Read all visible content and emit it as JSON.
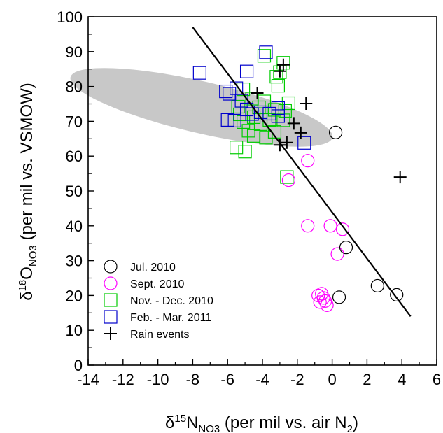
{
  "chart_data": {
    "type": "scatter",
    "xlim": [
      -14,
      6
    ],
    "ylim": [
      0,
      100
    ],
    "x_ticks": [
      -14,
      -12,
      -10,
      -8,
      -6,
      -4,
      -2,
      0,
      2,
      4,
      6
    ],
    "y_ticks": [
      0,
      10,
      20,
      30,
      40,
      50,
      60,
      70,
      80,
      90,
      100
    ],
    "x_tick_labels": [
      "-14",
      "-12",
      "-10",
      "-8",
      "-6",
      "-4",
      "-2",
      "0",
      "2",
      "4",
      "6"
    ],
    "y_tick_labels": [
      "0",
      "10",
      "20",
      "30",
      "40",
      "50",
      "60",
      "70",
      "80",
      "90",
      "100"
    ],
    "xlabel": {
      "prefix": "δ",
      "sup": "15",
      "main": "N",
      "sub": "NO3",
      "suffix": " (per mil vs. air N",
      "suffix_sub": "2",
      "end": ")"
    },
    "ylabel": {
      "prefix": "δ",
      "sup": "18",
      "main": "O",
      "sub": "NO3",
      "suffix": " (per mil vs. VSMOW)"
    },
    "grid": false,
    "legend_position": "bottom-left",
    "ellipse": {
      "center": [
        -7.5,
        74
      ],
      "x_radius": 7.6,
      "y_radius": 8.4,
      "fill": "#c8c8c8"
    },
    "regression_line": {
      "start": [
        -8,
        97
      ],
      "end": [
        4.5,
        14
      ],
      "color": "#000000"
    },
    "series": [
      {
        "name": "Jul. 2010",
        "marker": "circle",
        "color": "#000000",
        "points": [
          [
            0.2,
            66.8
          ],
          [
            0.8,
            33.8
          ],
          [
            2.6,
            22.8
          ],
          [
            3.7,
            20.2
          ],
          [
            0.4,
            19.5
          ]
        ]
      },
      {
        "name": "Sept. 2010",
        "marker": "circle",
        "color": "#ff00ff",
        "points": [
          [
            -1.4,
            58.7
          ],
          [
            -2.5,
            53.1
          ],
          [
            -1.4,
            40.0
          ],
          [
            -0.1,
            40.0
          ],
          [
            0.6,
            39.0
          ],
          [
            0.3,
            31.9
          ],
          [
            -0.6,
            20.5
          ],
          [
            -0.8,
            20.0
          ],
          [
            -0.5,
            19.3
          ],
          [
            -0.4,
            18.4
          ],
          [
            -0.7,
            18.1
          ],
          [
            -0.3,
            17.2
          ]
        ]
      },
      {
        "name": "Nov. - Dec. 2010",
        "marker": "square",
        "color": "#00cc00",
        "points": [
          [
            -3.9,
            88.8
          ],
          [
            -2.8,
            86.8
          ],
          [
            -3.0,
            84.1
          ],
          [
            -3.2,
            82.8
          ],
          [
            -3.1,
            80.2
          ],
          [
            -5.1,
            79.2
          ],
          [
            -4.6,
            76.5
          ],
          [
            -3.9,
            75.7
          ],
          [
            -2.5,
            75.2
          ],
          [
            -5.4,
            74.2
          ],
          [
            -4.2,
            74.0
          ],
          [
            -3.3,
            73.3
          ],
          [
            -2.7,
            73.0
          ],
          [
            -5.3,
            72.0
          ],
          [
            -4.5,
            71.2
          ],
          [
            -3.6,
            70.4
          ],
          [
            -2.8,
            70.3
          ],
          [
            -5.1,
            69.8
          ],
          [
            -4.1,
            69.2
          ],
          [
            -4.8,
            67.3
          ],
          [
            -3.3,
            67.0
          ],
          [
            -4.5,
            65.8
          ],
          [
            -3.8,
            65.3
          ],
          [
            -5.5,
            62.5
          ],
          [
            -5.0,
            61.3
          ],
          [
            -2.6,
            54.0
          ]
        ]
      },
      {
        "name": "Feb. - Mar. 2011",
        "marker": "square",
        "color": "#0000cc",
        "points": [
          [
            -3.8,
            89.8
          ],
          [
            -7.6,
            83.9
          ],
          [
            -4.9,
            84.3
          ],
          [
            -6.1,
            78.6
          ],
          [
            -5.5,
            79.5
          ],
          [
            -5.9,
            77.9
          ],
          [
            -5.2,
            75.9
          ],
          [
            -4.9,
            73.4
          ],
          [
            -4.6,
            72.1
          ],
          [
            -4.1,
            72.6
          ],
          [
            -3.6,
            72.2
          ],
          [
            -3.1,
            73.8
          ],
          [
            -3.1,
            71.5
          ],
          [
            -6.0,
            70.4
          ],
          [
            -5.6,
            70.2
          ],
          [
            -1.6,
            63.8
          ]
        ]
      },
      {
        "name": "Rain events",
        "marker": "plus",
        "color": "#000000",
        "points": [
          [
            -2.8,
            86.2
          ],
          [
            -3.0,
            84.4
          ],
          [
            -4.3,
            78.1
          ],
          [
            -1.5,
            75.1
          ],
          [
            -2.2,
            69.4
          ],
          [
            -1.8,
            66.7
          ],
          [
            -3.0,
            63.2
          ],
          [
            -2.6,
            63.9
          ],
          [
            3.9,
            54.0
          ]
        ]
      }
    ]
  }
}
